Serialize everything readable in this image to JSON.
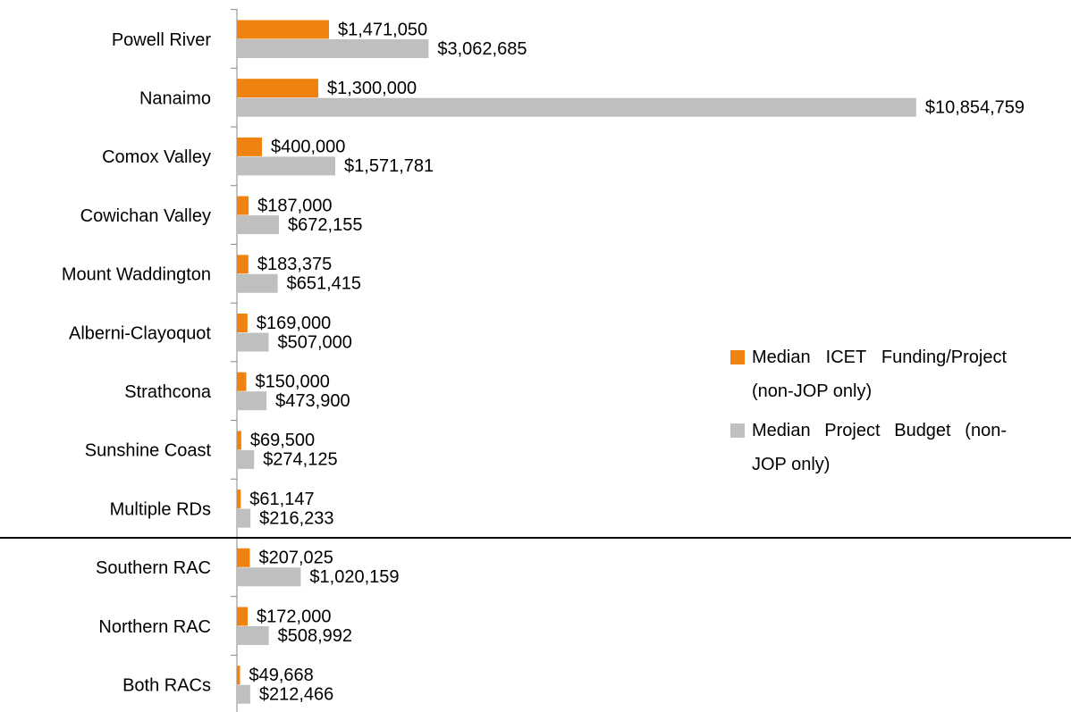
{
  "chart_data": {
    "type": "bar",
    "orientation": "horizontal",
    "categories": [
      "Powell River",
      "Nanaimo",
      "Comox Valley",
      "Cowichan Valley",
      "Mount Waddington",
      "Alberni-Clayoquot",
      "Strathcona",
      "Sunshine Coast",
      "Multiple RDs",
      "Southern RAC",
      "Northern RAC",
      "Both RACs"
    ],
    "series": [
      {
        "name": "Median ICET Funding/Project (non-JOP only)",
        "color": "#f0820f",
        "values": [
          1471050,
          1300000,
          400000,
          187000,
          183375,
          169000,
          150000,
          69500,
          61147,
          207025,
          172000,
          49668
        ],
        "value_labels": [
          "$1,471,050",
          "$1,300,000",
          "$400,000",
          "$187,000",
          "$183,375",
          "$169,000",
          "$150,000",
          "$69,500",
          "$61,147",
          "$207,025",
          "$172,000",
          "$49,668"
        ]
      },
      {
        "name": "Median Project Budget (non-JOP only)",
        "color": "#bfbfbf",
        "values": [
          3062685,
          10854759,
          1571781,
          672155,
          651415,
          507000,
          473900,
          274125,
          216233,
          1020159,
          508992,
          212466
        ],
        "value_labels": [
          "$3,062,685",
          "$10,854,759",
          "$1,571,781",
          "$672,155",
          "$651,415",
          "$507,000",
          "$473,900",
          "$274,125",
          "$216,233",
          "$1,020,159",
          "$508,992",
          "$212,466"
        ]
      }
    ],
    "xlim": [
      0,
      12000000
    ],
    "grid": false,
    "legend": "right"
  }
}
